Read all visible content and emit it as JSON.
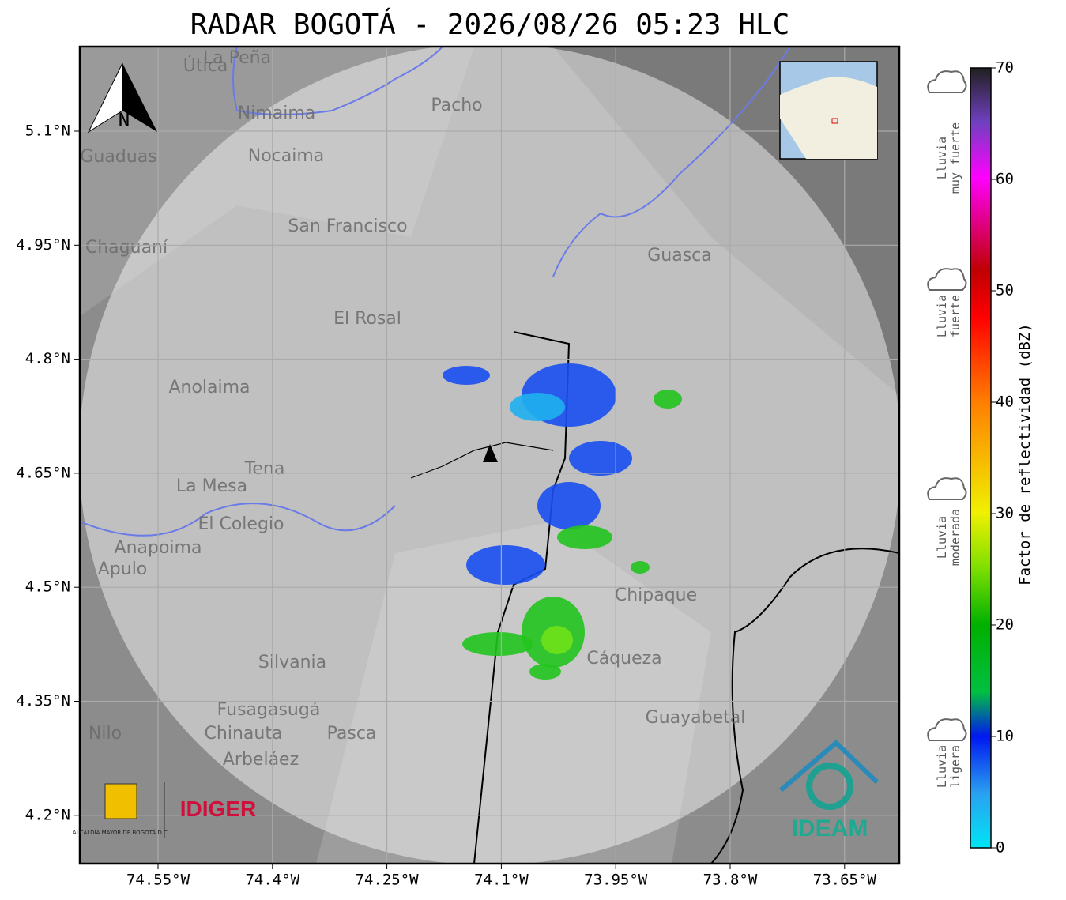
{
  "header": {
    "title": "RADAR BOGOTÁ - 2026/08/26 05:23 HLC"
  },
  "map": {
    "lat_ticks": [
      "5.1°N",
      "4.95°N",
      "4.8°N",
      "4.65°N",
      "4.5°N",
      "4.35°N",
      "4.2°N"
    ],
    "lon_ticks": [
      "74.55°W",
      "74.4°W",
      "74.25°W",
      "74.1°W",
      "73.95°W",
      "73.8°W",
      "73.65°W"
    ],
    "north": "N",
    "places": [
      "La Peña",
      "Útica",
      "Nimaima",
      "Guaduas",
      "Nocaima",
      "Pacho",
      "Chaguaní",
      "San Francisco",
      "El Rosal",
      "Anolaima",
      "La Mesa",
      "Tena",
      "El Colegio",
      "Anapoima",
      "Apulo",
      "Silvania",
      "Fusagasugá",
      "Chinauta",
      "Arbeláez",
      "Pasca",
      "Nilo",
      "Chipaque",
      "Cáqueza",
      "Guasca",
      "Guayabetal"
    ]
  },
  "logos": {
    "idiger": "IDIGER",
    "alcaldia": "ALCALDÍA MAYOR DE BOGOTÁ D.C.",
    "ideam": "IDEAM"
  },
  "colorbar": {
    "label": "Factor de reflectividad (dBZ)",
    "ticks": [
      "0",
      "10",
      "20",
      "30",
      "40",
      "50",
      "60",
      "70"
    ],
    "categories": [
      [
        "Lluvia",
        "muy fuerte"
      ],
      [
        "Lluvia",
        "fuerte"
      ],
      [
        "Lluvia",
        "moderada"
      ],
      [
        "Lluvia",
        "ligera"
      ]
    ]
  }
}
